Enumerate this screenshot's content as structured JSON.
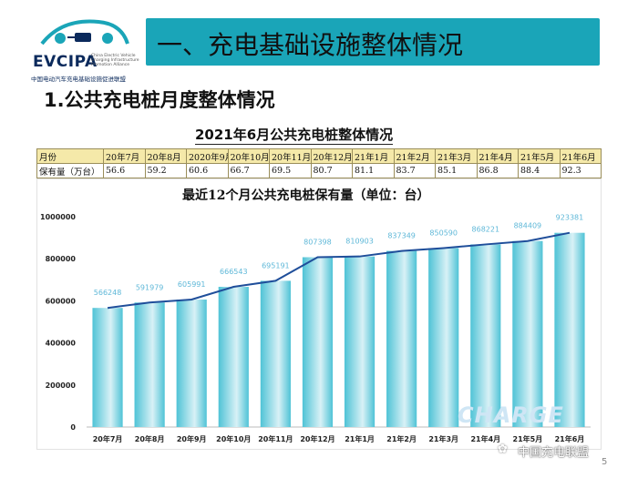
{
  "logo": {
    "name": "EVCIPA",
    "subtitle": "China Electric Vehicle Charging Infrastructure Promotion Alliance",
    "cn_name": "中国电动汽车充电基础设施促进联盟"
  },
  "header": {
    "title": "一、充电基础设施整体情况"
  },
  "section": {
    "heading": "1.公共充电桩月度整体情况"
  },
  "table": {
    "title": "2021年6月公共充电桩整体情况",
    "row_label_month": "月份",
    "row_label_stock": "保有量（万台）",
    "months": [
      "20年7月",
      "20年8月",
      "2020年9月",
      "20年10月",
      "20年11月",
      "20年12月",
      "21年1月",
      "21年2月",
      "21年3月",
      "21年4月",
      "21年5月",
      "21年6月"
    ],
    "stock": [
      "56.6",
      "59.2",
      "60.6",
      "66.7",
      "69.5",
      "80.7",
      "81.1",
      "83.7",
      "85.1",
      "86.8",
      "88.4",
      "92.3"
    ]
  },
  "chart_data": {
    "type": "bar",
    "title": "最近12个月公共充电桩保有量（单位：台）",
    "categories": [
      "20年7月",
      "20年8月",
      "20年9月",
      "20年10月",
      "20年11月",
      "20年12月",
      "21年1月",
      "21年2月",
      "21年3月",
      "21年4月",
      "21年5月",
      "21年6月"
    ],
    "values": [
      566248,
      591979,
      605991,
      666543,
      695191,
      807398,
      810903,
      837349,
      850590,
      868221,
      884409,
      923381
    ],
    "overlay_line": true,
    "ylim": [
      0,
      1000000
    ],
    "yticks": [
      "0",
      "200000",
      "400000",
      "600000",
      "800000",
      "1000000"
    ],
    "grid": false,
    "legend": "none",
    "colors": {
      "bar": "#4fc3d6",
      "bar_light": "#d8f1f6",
      "line": "#1f4e9a",
      "label": "#5fb8d8"
    }
  },
  "watermark": {
    "brand": "中国充电联盟",
    "logo_text": "CHARGE",
    "page": "5"
  }
}
